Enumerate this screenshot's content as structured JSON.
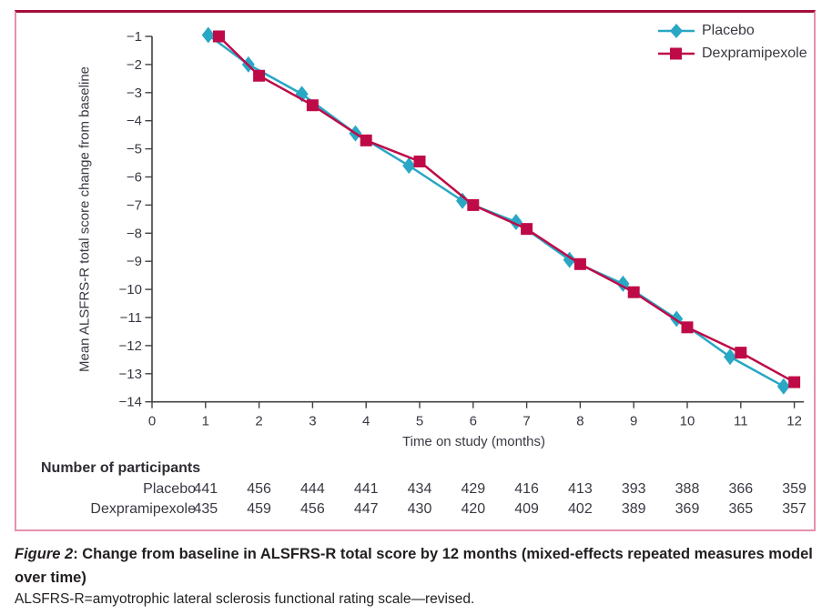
{
  "figure": {
    "caption_label": "Figure 2",
    "caption_title": ": Change from baseline in ALSFRS-R total score by 12 months (mixed-effects repeated measures model over time)",
    "footnote": "ALSFRS-R=amyotrophic lateral sclerosis functional rating scale—revised."
  },
  "chart_data": {
    "type": "line",
    "title": "",
    "xlabel": "Time on study (months)",
    "ylabel": "Mean ALSFRS-R total score change from baseline",
    "xlim": [
      0,
      12
    ],
    "ylim": [
      -14,
      -1
    ],
    "grid": false,
    "legend_position": "top-right",
    "x_ticks": [
      0,
      1,
      2,
      3,
      4,
      5,
      6,
      7,
      8,
      9,
      10,
      11,
      12
    ],
    "y_ticks": [
      -1,
      -2,
      -3,
      -4,
      -5,
      -6,
      -7,
      -8,
      -9,
      -10,
      -11,
      -12,
      -13,
      -14
    ],
    "y_tick_labels": [
      "−1",
      "−2",
      "−3",
      "−4",
      "−5",
      "−6",
      "−7",
      "−8",
      "−9",
      "−10",
      "−11",
      "−12",
      "−13",
      "−14"
    ],
    "series": [
      {
        "name": "Placebo",
        "marker": "diamond",
        "color": "#29a7c5",
        "x": [
          1.05,
          1.8,
          2.8,
          3.8,
          4.8,
          5.8,
          6.8,
          7.8,
          8.8,
          9.8,
          10.8,
          11.8
        ],
        "months": [
          1,
          2,
          3,
          4,
          5,
          6,
          7,
          8,
          9,
          10,
          11,
          12
        ],
        "y": [
          -0.95,
          -2.0,
          -3.05,
          -4.45,
          -5.6,
          -6.85,
          -7.6,
          -8.95,
          -9.8,
          -11.05,
          -12.4,
          -13.45
        ]
      },
      {
        "name": "Dexpramipexole",
        "marker": "square",
        "color": "#be0b48",
        "x": [
          1.25,
          2.0,
          3.0,
          4.0,
          5.0,
          6.0,
          7.0,
          8.0,
          9.0,
          10.0,
          11.0,
          12.0
        ],
        "months": [
          1,
          2,
          3,
          4,
          5,
          6,
          7,
          8,
          9,
          10,
          11,
          12
        ],
        "y": [
          -1.0,
          -2.4,
          -3.45,
          -4.7,
          -5.45,
          -7.0,
          -7.85,
          -9.1,
          -10.1,
          -11.35,
          -12.25,
          -13.3
        ]
      }
    ]
  },
  "participants": {
    "header": "Number of participants",
    "rows": [
      {
        "label": "Placebo",
        "values": [
          441,
          456,
          444,
          441,
          434,
          429,
          416,
          413,
          393,
          388,
          366,
          359
        ]
      },
      {
        "label": "Dexpramipexole",
        "values": [
          435,
          459,
          456,
          447,
          430,
          420,
          409,
          402,
          389,
          369,
          365,
          357
        ]
      }
    ]
  },
  "colors": {
    "placebo": "#29a7c5",
    "dexpramipexole": "#be0b48",
    "frame_top": "#a50f3c",
    "frame_sides": "#e591aa",
    "axis": "#404040",
    "text": "#3a3842"
  }
}
